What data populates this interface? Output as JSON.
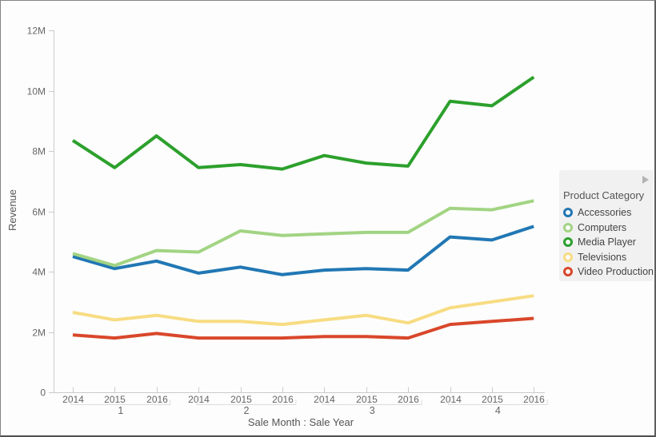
{
  "chart_data": {
    "type": "line",
    "title": "",
    "xlabel": "Sale Month : Sale Year",
    "ylabel": "Revenue",
    "ylim": [
      0,
      12
    ],
    "values_unit": "millions",
    "grid": "off",
    "y_ticks": [
      "0",
      "2M",
      "4M",
      "6M",
      "8M",
      "10M",
      "12M"
    ],
    "y_tick_values": [
      0,
      2,
      4,
      6,
      8,
      10,
      12
    ],
    "groups": [
      {
        "label": "1",
        "years": [
          "2014",
          "2015",
          "2016"
        ]
      },
      {
        "label": "2",
        "years": [
          "2014",
          "2015",
          "2016"
        ]
      },
      {
        "label": "3",
        "years": [
          "2014",
          "2015",
          "2016"
        ]
      },
      {
        "label": "4",
        "years": [
          "2014",
          "2015",
          "2016"
        ]
      }
    ],
    "series": [
      {
        "name": "Accessories",
        "color": "#2177b4",
        "values": [
          4.5,
          4.1,
          4.35,
          3.95,
          4.15,
          3.9,
          4.05,
          4.1,
          4.05,
          5.15,
          5.05,
          5.5
        ]
      },
      {
        "name": "Computers",
        "color": "#a2d483",
        "values": [
          4.6,
          4.2,
          4.7,
          4.65,
          5.35,
          5.2,
          5.25,
          5.3,
          5.3,
          6.1,
          6.05,
          6.35
        ]
      },
      {
        "name": "Media Player",
        "color": "#2ca02c",
        "values": [
          8.35,
          7.45,
          8.5,
          7.45,
          7.55,
          7.4,
          7.85,
          7.6,
          7.5,
          9.65,
          9.5,
          10.45
        ]
      },
      {
        "name": "Televisions",
        "color": "#f8dc82",
        "values": [
          2.65,
          2.4,
          2.55,
          2.35,
          2.35,
          2.25,
          2.4,
          2.55,
          2.3,
          2.8,
          3.0,
          3.2
        ]
      },
      {
        "name": "Video Production",
        "color": "#d9472b",
        "values": [
          1.9,
          1.8,
          1.95,
          1.8,
          1.8,
          1.8,
          1.85,
          1.85,
          1.8,
          2.25,
          2.35,
          2.45
        ]
      }
    ],
    "legend": {
      "title": "Product Category",
      "position": "right"
    }
  }
}
